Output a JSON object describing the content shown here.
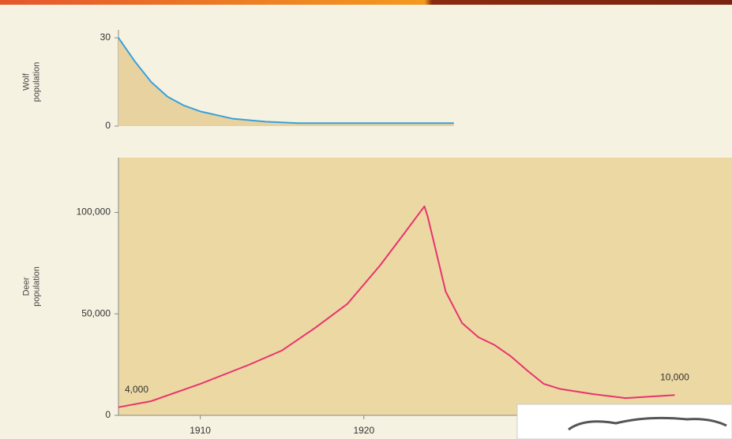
{
  "chart_data": [
    {
      "type": "area-line",
      "ylabel": "Wolf population",
      "x": [
        1905,
        1906,
        1907,
        1908,
        1909,
        1910,
        1912,
        1914,
        1916,
        1925.5
      ],
      "series": [
        {
          "color": "#3aa0d8",
          "values": [
            30,
            22,
            15,
            10,
            7,
            5,
            2.5,
            1.5,
            1,
            1
          ]
        }
      ],
      "fill": "#e8d3a0",
      "xlim": [
        1905,
        1942.5
      ],
      "ylim": [
        0,
        30
      ],
      "yticks": [
        0,
        30
      ]
    },
    {
      "type": "line",
      "ylabel": "Deer population",
      "x": [
        1905,
        1907,
        1910,
        1913,
        1915,
        1917,
        1919,
        1921,
        1922.5,
        1923.7,
        1923.9,
        1925,
        1926,
        1927,
        1928,
        1929,
        1930,
        1931,
        1932,
        1934,
        1936,
        1939
      ],
      "series": [
        {
          "color": "#e8336e",
          "values": [
            4000,
            7000,
            15500,
            25000,
            32000,
            43000,
            55000,
            74000,
            90000,
            103000,
            98000,
            61000,
            45500,
            38500,
            34600,
            29000,
            22000,
            15500,
            13000,
            10500,
            8500,
            10000
          ],
          "value_labels": [
            "4,000",
            null,
            null,
            null,
            null,
            null,
            null,
            null,
            null,
            null,
            null,
            null,
            null,
            null,
            null,
            null,
            null,
            null,
            null,
            null,
            null,
            "10,000"
          ]
        }
      ],
      "background": "#ecd8a3",
      "xlim": [
        1905,
        1942.5
      ],
      "ylim": [
        0,
        127000
      ],
      "yticks": [
        0,
        {
          "value": 50000,
          "label": "50,000"
        },
        {
          "value": 100000,
          "label": "100,000"
        }
      ],
      "xticks": [
        1910,
        1920
      ]
    }
  ]
}
